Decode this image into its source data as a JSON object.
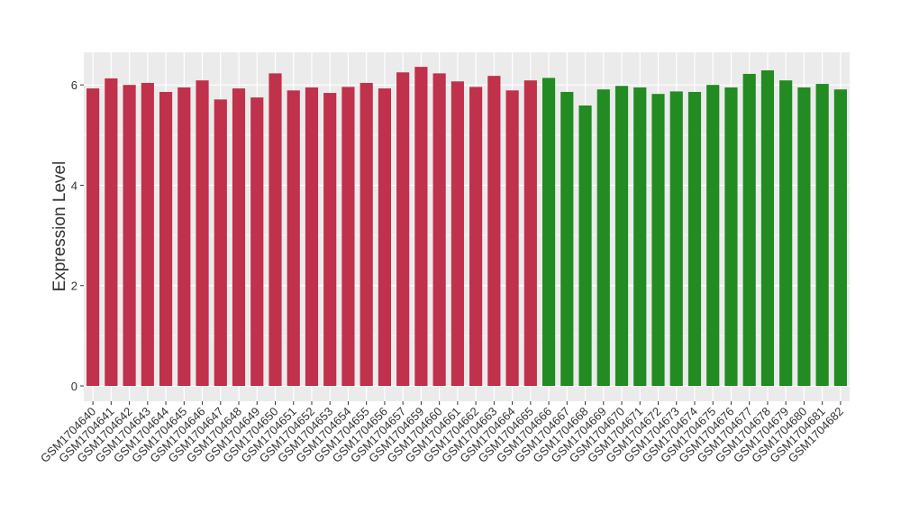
{
  "chart_data": {
    "type": "bar",
    "y_label": "Expression Level",
    "categories": [
      "GSM1704640",
      "GSM1704641",
      "GSM1704642",
      "GSM1704643",
      "GSM1704644",
      "GSM1704645",
      "GSM1704646",
      "GSM1704647",
      "GSM1704648",
      "GSM1704649",
      "GSM1704650",
      "GSM1704651",
      "GSM1704652",
      "GSM1704653",
      "GSM1704654",
      "GSM1704655",
      "GSM1704656",
      "GSM1704657",
      "GSM1704659",
      "GSM1704660",
      "GSM1704661",
      "GSM1704662",
      "GSM1704663",
      "GSM1704664",
      "GSM1704665",
      "GSM1704666",
      "GSM1704667",
      "GSM1704668",
      "GSM1704669",
      "GSM1704670",
      "GSM1704671",
      "GSM1704672",
      "GSM1704673",
      "GSM1704674",
      "GSM1704675",
      "GSM1704676",
      "GSM1704677",
      "GSM1704678",
      "GSM1704679",
      "GSM1704680",
      "GSM1704681",
      "GSM1704682"
    ],
    "values": [
      5.93,
      6.13,
      6.0,
      6.04,
      5.86,
      5.95,
      6.09,
      5.71,
      5.93,
      5.75,
      6.23,
      5.89,
      5.95,
      5.84,
      5.96,
      6.04,
      5.93,
      6.25,
      6.36,
      6.23,
      6.07,
      5.96,
      6.18,
      5.89,
      6.09,
      6.14,
      5.86,
      5.59,
      5.91,
      5.98,
      5.95,
      5.82,
      5.87,
      5.86,
      6.0,
      5.95,
      6.22,
      6.29,
      6.09,
      5.95,
      6.02,
      5.91
    ],
    "colors": [
      "#c0314b",
      "#c0314b",
      "#c0314b",
      "#c0314b",
      "#c0314b",
      "#c0314b",
      "#c0314b",
      "#c0314b",
      "#c0314b",
      "#c0314b",
      "#c0314b",
      "#c0314b",
      "#c0314b",
      "#c0314b",
      "#c0314b",
      "#c0314b",
      "#c0314b",
      "#c0314b",
      "#c0314b",
      "#c0314b",
      "#c0314b",
      "#c0314b",
      "#c0314b",
      "#c0314b",
      "#c0314b",
      "#228b22",
      "#228b22",
      "#228b22",
      "#228b22",
      "#228b22",
      "#228b22",
      "#228b22",
      "#228b22",
      "#228b22",
      "#228b22",
      "#228b22",
      "#228b22",
      "#228b22",
      "#228b22",
      "#228b22",
      "#228b22",
      "#228b22"
    ],
    "ylim": [
      -0.305,
      6.65
    ],
    "yticks": [
      0,
      2,
      4,
      6
    ],
    "minor_yticks": [
      1,
      3,
      5
    ],
    "grid": true
  }
}
